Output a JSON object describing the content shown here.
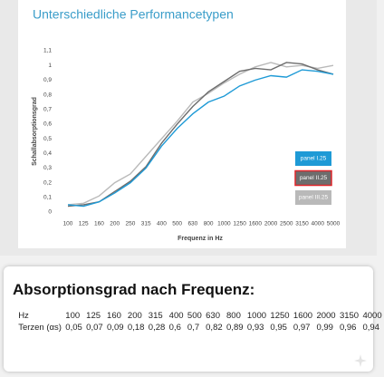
{
  "chart_data": {
    "type": "line",
    "title": "Unterschiedliche Performancetypen",
    "y_label": "Schallabsorptionsgrad",
    "x_label": "Frequenz in Hz",
    "categories": [
      "100",
      "125",
      "160",
      "200",
      "250",
      "315",
      "400",
      "500",
      "630",
      "800",
      "1000",
      "1250",
      "1600",
      "2000",
      "2500",
      "3150",
      "4000",
      "5000"
    ],
    "series": [
      {
        "name": "panel I.25",
        "color": "#1e9ad6",
        "values": [
          0.05,
          0.04,
          0.07,
          0.13,
          0.2,
          0.3,
          0.45,
          0.57,
          0.67,
          0.75,
          0.79,
          0.86,
          0.9,
          0.93,
          0.92,
          0.97,
          0.96,
          0.94
        ]
      },
      {
        "name": "panel II.25",
        "color": "#6d6d6d",
        "values": [
          0.04,
          0.05,
          0.07,
          0.14,
          0.21,
          0.31,
          0.47,
          0.6,
          0.72,
          0.82,
          0.89,
          0.96,
          0.98,
          0.97,
          1.02,
          1.01,
          0.97,
          0.94
        ]
      },
      {
        "name": "panel III.25",
        "color": "#b9b9b9",
        "values": [
          0.05,
          0.06,
          0.11,
          0.2,
          0.26,
          0.38,
          0.5,
          0.62,
          0.75,
          0.81,
          0.88,
          0.94,
          0.99,
          1.02,
          0.99,
          1.0,
          0.98,
          1.0
        ]
      }
    ],
    "ylim": [
      0,
      1.1
    ],
    "yticks": [
      0,
      {
        "value": 0.1,
        "label": "0,1"
      },
      {
        "value": 0.2,
        "label": "0,2"
      },
      {
        "value": 0.3,
        "label": "0,3"
      },
      {
        "value": 0.4,
        "label": "0,4"
      },
      {
        "value": 0.5,
        "label": "0,5"
      },
      {
        "value": 0.6,
        "label": "0,6"
      },
      {
        "value": 0.7,
        "label": "0,7"
      },
      {
        "value": 0.8,
        "label": "0,8"
      },
      {
        "value": 0.9,
        "label": "0,9"
      },
      1,
      {
        "value": 1.1,
        "label": "1,1"
      }
    ]
  },
  "table": {
    "title": "Absorptionsgrad nach Frequenz:",
    "rows": [
      [
        "Hz",
        "100",
        "125",
        "160",
        "200",
        "315",
        "400",
        "500",
        "630",
        "800",
        "1000",
        "1250",
        "1600",
        "2000",
        "3150",
        "4000"
      ],
      [
        "Terzen (αs)",
        "0,05",
        "0,07",
        "0,09",
        "0,18",
        "0,28",
        "0,6",
        "0,7",
        "0,82",
        "0,89",
        "0,93",
        "0,95",
        "0,97",
        "0,99",
        "0,96",
        "0,94"
      ]
    ]
  }
}
